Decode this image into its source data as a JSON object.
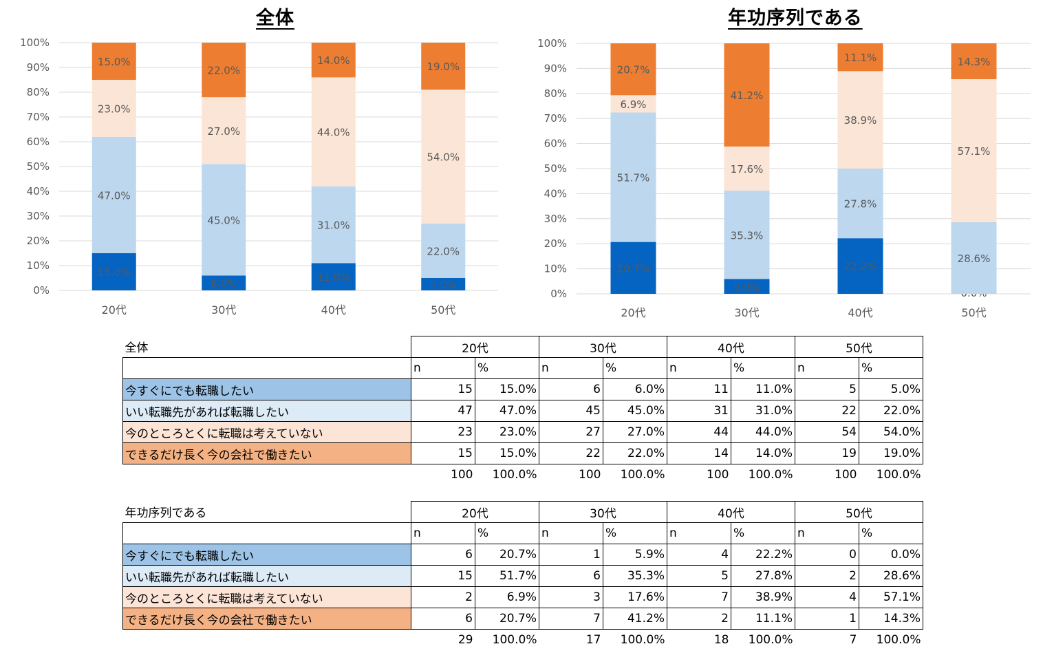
{
  "colors": {
    "now": "#0563c1",
    "good": "#bdd7ee",
    "not": "#fbe5d6",
    "stay": "#ed7d31",
    "grid": "#d9d9d9",
    "axis_text": "#595959"
  },
  "chart_data": [
    {
      "type": "bar",
      "stacked": true,
      "title": "全体",
      "categories": [
        "20代",
        "30代",
        "40代",
        "50代"
      ],
      "yticks": [
        "0%",
        "10%",
        "20%",
        "30%",
        "40%",
        "50%",
        "60%",
        "70%",
        "80%",
        "90%",
        "100%"
      ],
      "ylim": [
        0,
        100
      ],
      "series": [
        {
          "key": "now",
          "values": [
            15,
            6,
            11,
            5
          ],
          "labels": [
            "15.0%",
            "6.0%",
            "11.0%",
            "5.0%"
          ]
        },
        {
          "key": "good",
          "values": [
            47,
            45,
            31,
            22
          ],
          "labels": [
            "47.0%",
            "45.0%",
            "31.0%",
            "22.0%"
          ]
        },
        {
          "key": "not",
          "values": [
            23,
            27,
            44,
            54
          ],
          "labels": [
            "23.0%",
            "27.0%",
            "44.0%",
            "54.0%"
          ]
        },
        {
          "key": "stay",
          "values": [
            15,
            22,
            14,
            19
          ],
          "labels": [
            "15.0%",
            "22.0%",
            "14.0%",
            "19.0%"
          ]
        }
      ]
    },
    {
      "type": "bar",
      "stacked": true,
      "title": "年功序列である",
      "categories": [
        "20代",
        "30代",
        "40代",
        "50代"
      ],
      "yticks": [
        "0%",
        "10%",
        "20%",
        "30%",
        "40%",
        "50%",
        "60%",
        "70%",
        "80%",
        "90%",
        "100%"
      ],
      "ylim": [
        0,
        100
      ],
      "series": [
        {
          "key": "now",
          "values": [
            20.7,
            5.9,
            22.2,
            0
          ],
          "labels": [
            "20.7%",
            "5.9%",
            "22.2%",
            "0.0%"
          ]
        },
        {
          "key": "good",
          "values": [
            51.7,
            35.3,
            27.8,
            28.6
          ],
          "labels": [
            "51.7%",
            "35.3%",
            "27.8%",
            "28.6%"
          ]
        },
        {
          "key": "not",
          "values": [
            6.9,
            17.6,
            38.9,
            57.1
          ],
          "labels": [
            "6.9%",
            "17.6%",
            "38.9%",
            "57.1%"
          ]
        },
        {
          "key": "stay",
          "values": [
            20.7,
            41.2,
            11.1,
            14.3
          ],
          "labels": [
            "20.7%",
            "41.2%",
            "11.1%",
            "14.3%"
          ]
        }
      ]
    }
  ],
  "tables": [
    {
      "title": "全体",
      "groups": [
        "20代",
        "30代",
        "40代",
        "50代"
      ],
      "n_label": "n",
      "pct_label": "%",
      "rows": [
        {
          "label": "今すぐにでも転職したい",
          "n": [
            "15",
            "6",
            "11",
            "5"
          ],
          "pct": [
            "15.0%",
            "6.0%",
            "11.0%",
            "5.0%"
          ]
        },
        {
          "label": "いい転職先があれば転職したい",
          "n": [
            "47",
            "45",
            "31",
            "22"
          ],
          "pct": [
            "47.0%",
            "45.0%",
            "31.0%",
            "22.0%"
          ]
        },
        {
          "label": "今のところとくに転職は考えていない",
          "n": [
            "23",
            "27",
            "44",
            "54"
          ],
          "pct": [
            "23.0%",
            "27.0%",
            "44.0%",
            "54.0%"
          ]
        },
        {
          "label": "できるだけ長く今の会社で働きたい",
          "n": [
            "15",
            "22",
            "14",
            "19"
          ],
          "pct": [
            "15.0%",
            "22.0%",
            "14.0%",
            "19.0%"
          ]
        }
      ],
      "totals": {
        "n": [
          "100",
          "100",
          "100",
          "100"
        ],
        "pct": [
          "100.0%",
          "100.0%",
          "100.0%",
          "100.0%"
        ]
      }
    },
    {
      "title": "年功序列である",
      "groups": [
        "20代",
        "30代",
        "40代",
        "50代"
      ],
      "n_label": "n",
      "pct_label": "%",
      "rows": [
        {
          "label": "今すぐにでも転職したい",
          "n": [
            "6",
            "1",
            "4",
            "0"
          ],
          "pct": [
            "20.7%",
            "5.9%",
            "22.2%",
            "0.0%"
          ]
        },
        {
          "label": "いい転職先があれば転職したい",
          "n": [
            "15",
            "6",
            "5",
            "2"
          ],
          "pct": [
            "51.7%",
            "35.3%",
            "27.8%",
            "28.6%"
          ]
        },
        {
          "label": "今のところとくに転職は考えていない",
          "n": [
            "2",
            "3",
            "7",
            "4"
          ],
          "pct": [
            "6.9%",
            "17.6%",
            "38.9%",
            "57.1%"
          ]
        },
        {
          "label": "できるだけ長く今の会社で働きたい",
          "n": [
            "6",
            "7",
            "2",
            "1"
          ],
          "pct": [
            "20.7%",
            "41.2%",
            "11.1%",
            "14.3%"
          ]
        }
      ],
      "totals": {
        "n": [
          "29",
          "17",
          "18",
          "7"
        ],
        "pct": [
          "100.0%",
          "100.0%",
          "100.0%",
          "100.0%"
        ]
      }
    }
  ]
}
